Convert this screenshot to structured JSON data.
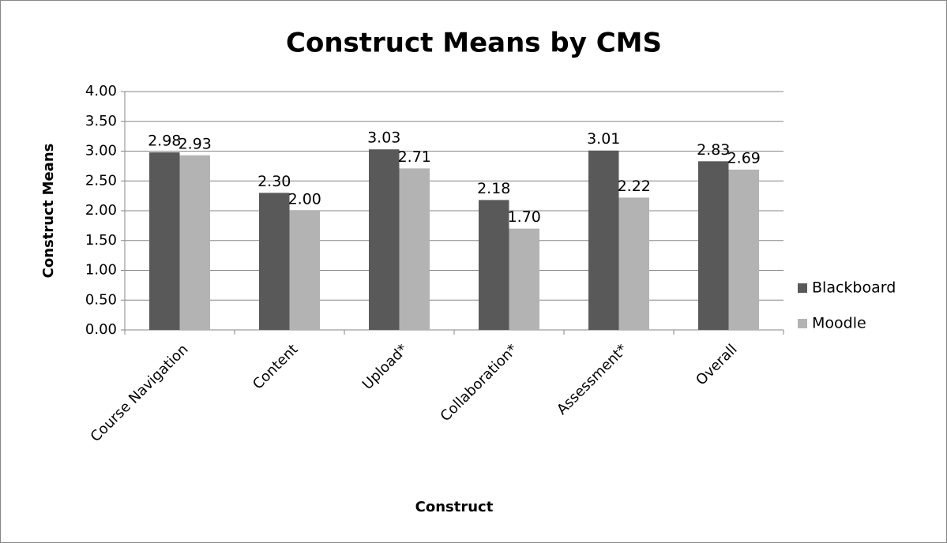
{
  "chart_data": {
    "type": "bar",
    "title": "Construct Means by CMS",
    "x_label": "Construct",
    "y_label": "Construct Means",
    "categories": [
      "Course Navigation",
      "Content",
      "Upload*",
      "Collaboration*",
      "Assessment*",
      "Overall"
    ],
    "series": [
      {
        "name": "Blackboard",
        "color": "#595959",
        "values": [
          2.98,
          2.3,
          3.03,
          2.18,
          3.01,
          2.83
        ],
        "value_labels": [
          "2.98",
          "2.30",
          "3.03",
          "2.18",
          "3.01",
          "2.83"
        ]
      },
      {
        "name": "Moodle",
        "color": "#b3b3b3",
        "values": [
          2.93,
          2.0,
          2.71,
          1.7,
          2.22,
          2.69
        ],
        "value_labels": [
          "2.93",
          "2.00",
          "2.71",
          "1.70",
          "2.22",
          "2.69"
        ]
      }
    ],
    "ylim": [
      0,
      4
    ],
    "yticks": [
      {
        "value": 0,
        "label": "0.00"
      },
      {
        "value": 0.5,
        "label": "0.50"
      },
      {
        "value": 1,
        "label": "1.00"
      },
      {
        "value": 1.5,
        "label": "1.50"
      },
      {
        "value": 2,
        "label": "2.00"
      },
      {
        "value": 2.5,
        "label": "2.50"
      },
      {
        "value": 3,
        "label": "3.00"
      },
      {
        "value": 3.5,
        "label": "3.50"
      },
      {
        "value": 4,
        "label": "4.00"
      }
    ],
    "grid": true,
    "legend": "right"
  }
}
